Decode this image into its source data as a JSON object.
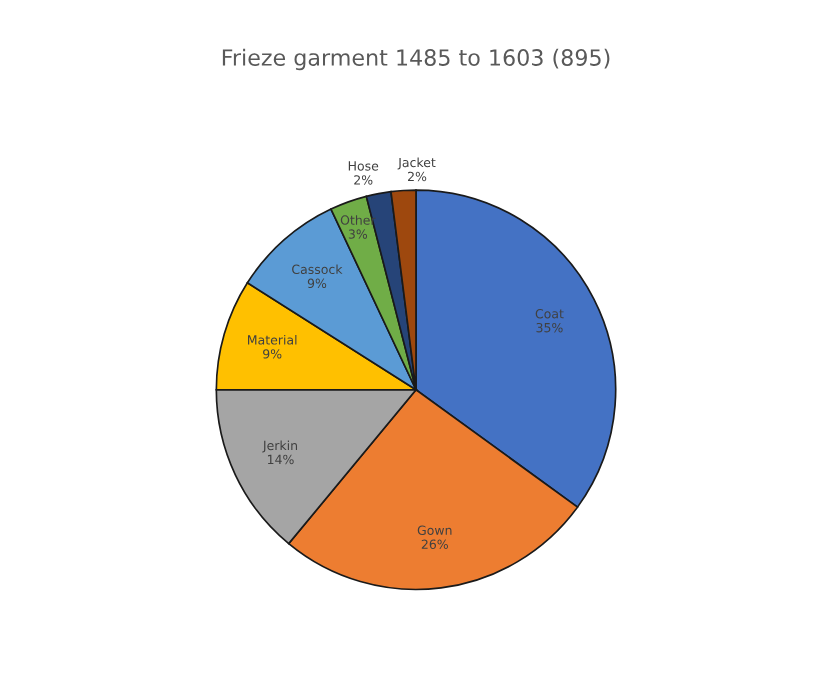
{
  "chart_data": {
    "type": "pie",
    "title": "Frieze garment 1485 to 1603 (895)",
    "categories": [
      "Coat",
      "Gown",
      "Jerkin",
      "Material",
      "Cassock",
      "Other",
      "Hose",
      "Jacket"
    ],
    "values": [
      35,
      26,
      14,
      9,
      9,
      3,
      2,
      2
    ],
    "value_labels": [
      "35%",
      "26%",
      "14%",
      "9%",
      "9%",
      "3%",
      "2%",
      "2%"
    ],
    "colors": [
      "#4472c4",
      "#ed7d31",
      "#a5a5a5",
      "#ffc000",
      "#5b9bd5",
      "#70ad47",
      "#264478",
      "#9e480e"
    ]
  }
}
